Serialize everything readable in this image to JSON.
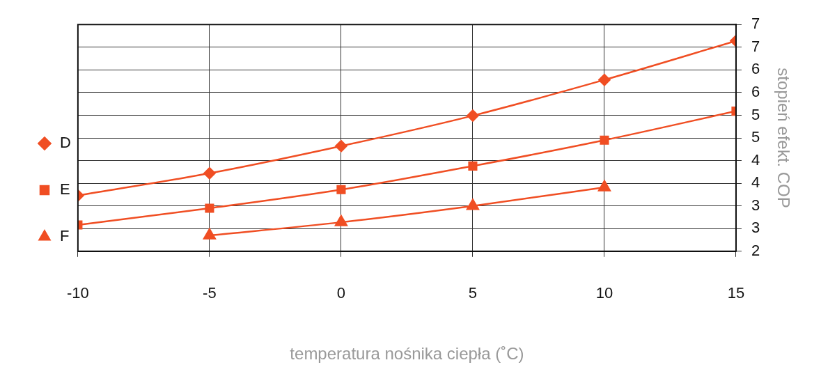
{
  "chart_data": {
    "type": "line",
    "xlabel": "temperatura nośnika ciepła (˚C)",
    "y2label": "stopień efekt. COP",
    "xlim": [
      -10,
      15
    ],
    "xticks": [
      -10,
      -5,
      0,
      5,
      10,
      15
    ],
    "y2lim": [
      2,
      7
    ],
    "y2ticks": [
      2,
      {
        "value": 2.5,
        "label": "3"
      },
      3,
      {
        "value": 3.5,
        "label": "4"
      },
      4,
      {
        "value": 4.5,
        "label": "5"
      },
      5,
      {
        "value": 5.5,
        "label": "6"
      },
      6,
      {
        "value": 6.5,
        "label": "7"
      },
      7
    ],
    "grid": true,
    "legend": "left",
    "line_style": "solid",
    "series": [
      {
        "name": "D",
        "color": "#f04e23",
        "marker": "diamond",
        "axis": "y2",
        "x": [
          -10,
          -5,
          0,
          5,
          10,
          15
        ],
        "values": [
          3.23,
          3.72,
          4.32,
          4.99,
          5.78,
          6.64
        ]
      },
      {
        "name": "E",
        "color": "#f04e23",
        "marker": "square",
        "axis": "y2",
        "x": [
          -10,
          -5,
          0,
          5,
          10,
          15
        ],
        "values": [
          2.58,
          2.95,
          3.36,
          3.88,
          4.45,
          5.09
        ]
      },
      {
        "name": "F",
        "color": "#f04e23",
        "marker": "triangle",
        "axis": "y2",
        "x": [
          -5,
          0,
          5,
          10
        ],
        "values": [
          2.35,
          2.64,
          3.0,
          3.41
        ]
      }
    ]
  }
}
